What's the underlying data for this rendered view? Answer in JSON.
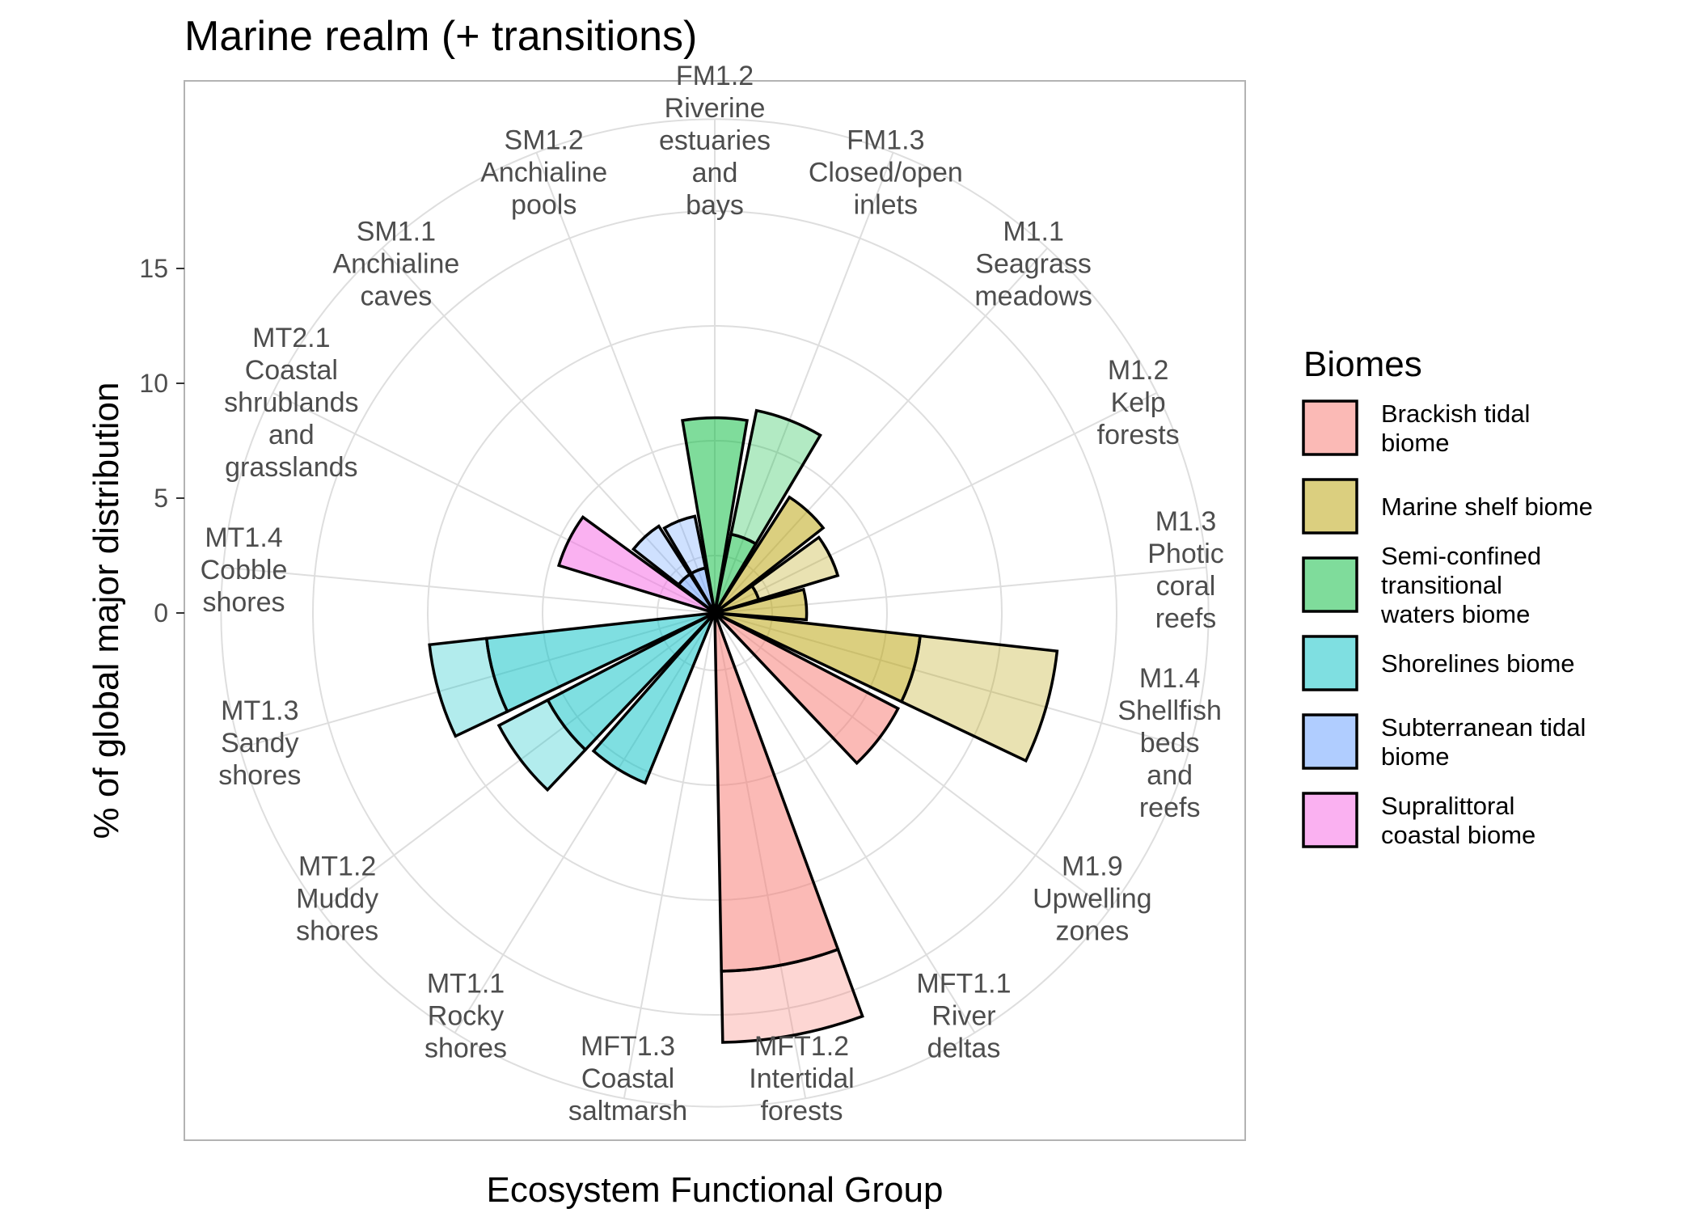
{
  "chart_data": {
    "type": "bar",
    "coord": "polar",
    "title": "Marine realm (+ transitions)",
    "xlabel": "Ecosystem Functional Group",
    "ylabel": "% of global major distribution",
    "y_ticks": [
      0,
      5,
      10,
      15
    ],
    "ylim": [
      0,
      21.5
    ],
    "grid": true,
    "legend_position": "right",
    "categories": [
      {
        "code": "FM1.2",
        "lines": [
          "FM1.2",
          "Riverine",
          "estuaries",
          "and",
          "bays"
        ]
      },
      {
        "code": "FM1.3",
        "lines": [
          "FM1.3",
          "Closed/open",
          "inlets"
        ]
      },
      {
        "code": "M1.1",
        "lines": [
          "M1.1",
          "Seagrass",
          "meadows"
        ]
      },
      {
        "code": "M1.2",
        "lines": [
          "M1.2",
          "Kelp",
          "forests"
        ]
      },
      {
        "code": "M1.3",
        "lines": [
          "M1.3",
          "Photic",
          "coral",
          "reefs"
        ]
      },
      {
        "code": "M1.4",
        "lines": [
          "M1.4",
          "Shellfish",
          "beds",
          "and",
          "reefs"
        ]
      },
      {
        "code": "M1.9",
        "lines": [
          "M1.9",
          "Upwelling",
          "zones"
        ]
      },
      {
        "code": "MFT1.1",
        "lines": [
          "MFT1.1",
          "River",
          "deltas"
        ]
      },
      {
        "code": "MFT1.2",
        "lines": [
          "MFT1.2",
          "Intertidal",
          "forests"
        ]
      },
      {
        "code": "MFT1.3",
        "lines": [
          "MFT1.3",
          "Coastal",
          "saltmarsh"
        ]
      },
      {
        "code": "MT1.1",
        "lines": [
          "MT1.1",
          "Rocky",
          "shores"
        ]
      },
      {
        "code": "MT1.2",
        "lines": [
          "MT1.2",
          "Muddy",
          "shores"
        ]
      },
      {
        "code": "MT1.3",
        "lines": [
          "MT1.3",
          "Sandy",
          "shores"
        ]
      },
      {
        "code": "MT1.4",
        "lines": [
          "MT1.4",
          "Cobble",
          "shores"
        ]
      },
      {
        "code": "MT2.1",
        "lines": [
          "MT2.1",
          "Coastal",
          "shrublands",
          "and",
          "grasslands"
        ]
      },
      {
        "code": "SM1.1",
        "lines": [
          "SM1.1",
          "Anchialine",
          "caves"
        ]
      },
      {
        "code": "SM1.2",
        "lines": [
          "SM1.2",
          "Anchialine",
          "pools"
        ]
      }
    ],
    "legend": {
      "title": "Biomes",
      "entries": [
        {
          "key": "brackish",
          "lines": [
            "Brackish tidal",
            "biome"
          ],
          "color": "#F8766D"
        },
        {
          "key": "marine_shelf",
          "lines": [
            "Marine shelf biome"
          ],
          "color": "#B79F00"
        },
        {
          "key": "semi_confined",
          "lines": [
            "Semi-confined",
            "transitional",
            "waters biome"
          ],
          "color": "#00BA38"
        },
        {
          "key": "shorelines",
          "lines": [
            "Shorelines biome"
          ],
          "color": "#00BFC4"
        },
        {
          "key": "subterranean",
          "lines": [
            "Subterranean tidal",
            "biome"
          ],
          "color": "#619CFF"
        },
        {
          "key": "supralittoral",
          "lines": [
            "Supralittoral",
            "coastal biome"
          ],
          "color": "#F564E3"
        }
      ]
    },
    "bars": [
      {
        "code": "FM1.2",
        "biome": "semi_confined",
        "major": 8.5,
        "minor": 0
      },
      {
        "code": "FM1.3",
        "biome": "semi_confined",
        "major": 3.5,
        "minor": 5.5
      },
      {
        "code": "M1.1",
        "biome": "marine_shelf",
        "major": 6.0,
        "minor": 0
      },
      {
        "code": "M1.2",
        "biome": "marine_shelf",
        "major": 2.0,
        "minor": 3.6
      },
      {
        "code": "M1.3",
        "biome": "marine_shelf",
        "major": 4.0,
        "minor": 0
      },
      {
        "code": "M1.4",
        "biome": "marine_shelf",
        "major": 9.0,
        "minor": 6.0
      },
      {
        "code": "M1.9",
        "biome": "brackish",
        "major": 9.0,
        "minor": 0
      },
      {
        "code": "MFT1.1",
        "biome": "brackish",
        "major": 0,
        "minor": 0
      },
      {
        "code": "MFT1.2",
        "biome": "brackish",
        "major": 15.6,
        "minor": 3.1
      },
      {
        "code": "MFT1.3",
        "biome": "shorelines",
        "major": 0,
        "minor": 0
      },
      {
        "code": "MT1.1",
        "biome": "shorelines",
        "major": 8.0,
        "minor": 0
      },
      {
        "code": "MT1.2",
        "biome": "shorelines",
        "major": 8.2,
        "minor": 2.4
      },
      {
        "code": "MT1.3",
        "biome": "shorelines",
        "major": 10.0,
        "minor": 2.5
      },
      {
        "code": "MT1.4",
        "biome": "supralittoral",
        "major": 0,
        "minor": 0
      },
      {
        "code": "MT2.1",
        "biome": "supralittoral",
        "major": 7.1,
        "minor": 0
      },
      {
        "code": "SM1.1",
        "biome": "subterranean",
        "major": 2.0,
        "minor": 2.5
      },
      {
        "code": "SM1.2",
        "biome": "subterranean",
        "major": 2.0,
        "minor": 2.3
      }
    ]
  }
}
